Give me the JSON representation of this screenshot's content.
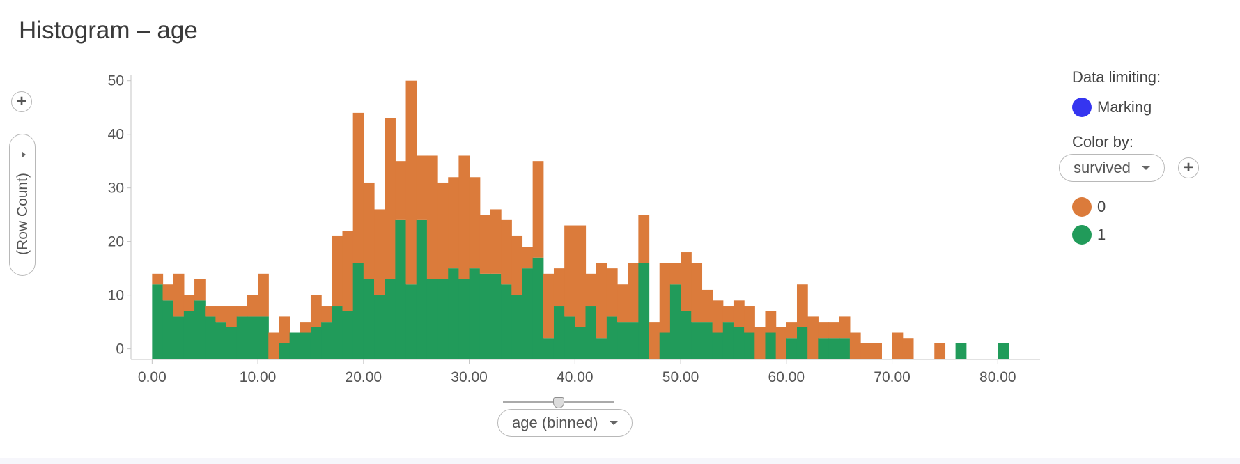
{
  "title": "Histogram – age",
  "axis_selectors": {
    "y_label": "(Row Count)",
    "x_label": "age (binned)"
  },
  "legend": {
    "data_limiting_label": "Data limiting:",
    "marking_label": "Marking",
    "marking_color": "#3535f0",
    "color_by_label": "Color by:",
    "color_by_value": "survived",
    "items": [
      {
        "label": "0",
        "color": "#db7b3b"
      },
      {
        "label": "1",
        "color": "#219b5a"
      }
    ]
  },
  "chart_data": {
    "type": "bar",
    "stacked": true,
    "bin_width": 1,
    "x_start": 0,
    "xlim": [
      -2,
      84
    ],
    "ylim": [
      -2,
      51
    ],
    "y_ticks": [
      0,
      10,
      20,
      30,
      40,
      50
    ],
    "y_tick_labels": [
      "0",
      "10",
      "20",
      "30",
      "40",
      "50"
    ],
    "x_ticks": [
      0,
      10,
      20,
      30,
      40,
      50,
      60,
      70,
      80
    ],
    "x_tick_labels": [
      "0.00",
      "10.00",
      "20.00",
      "30.00",
      "40.00",
      "50.00",
      "60.00",
      "70.00",
      "80.00"
    ],
    "xlabel": "age (binned)",
    "ylabel": "(Row Count)",
    "series": [
      {
        "name": "1",
        "values": [
          12,
          9,
          6,
          7,
          9,
          6,
          5,
          4,
          6,
          6,
          6,
          0,
          1,
          3,
          3,
          4,
          5,
          8,
          7,
          16,
          13,
          10,
          13,
          24,
          12,
          24,
          13,
          13,
          15,
          13,
          15,
          14,
          14,
          12,
          10,
          15,
          17,
          2,
          8,
          6,
          4,
          8,
          2,
          6,
          5,
          5,
          16,
          0,
          3,
          12,
          7,
          5,
          5,
          3,
          5,
          4,
          3,
          0,
          3,
          0,
          2,
          4,
          0,
          2,
          2,
          2,
          0,
          0,
          0,
          0,
          0,
          0,
          0,
          0,
          0,
          0,
          1,
          0,
          0,
          0,
          1
        ]
      },
      {
        "name": "0",
        "values": [
          2,
          3,
          8,
          3,
          4,
          2,
          3,
          4,
          2,
          4,
          8,
          3,
          5,
          0,
          2,
          6,
          3,
          13,
          15,
          28,
          18,
          16,
          30,
          11,
          38,
          12,
          23,
          18,
          17,
          23,
          17,
          11,
          12,
          12,
          11,
          4,
          18,
          12,
          7,
          17,
          19,
          6,
          14,
          9,
          7,
          11,
          9,
          5,
          13,
          4,
          11,
          11,
          6,
          6,
          3,
          5,
          5,
          4,
          4,
          4,
          3,
          8,
          6,
          3,
          3,
          4,
          3,
          1,
          1,
          0,
          3,
          2,
          0,
          0,
          1,
          0,
          0,
          0,
          0,
          0,
          0
        ]
      }
    ]
  }
}
